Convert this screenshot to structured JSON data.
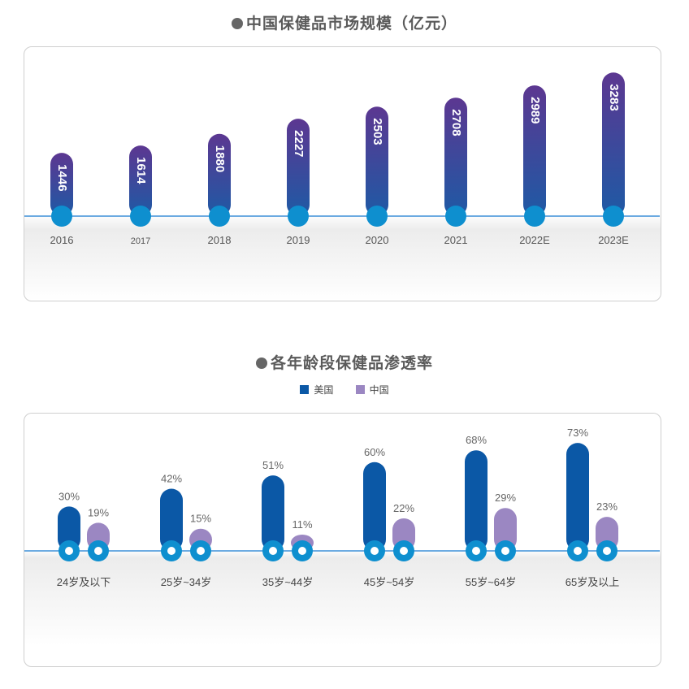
{
  "chart_data": [
    {
      "type": "bar",
      "title": "中国保健品市场规模（亿元）",
      "categories": [
        "2016",
        "2017",
        "2018",
        "2019",
        "2020",
        "2021",
        "2022E",
        "2023E"
      ],
      "values": [
        1446,
        1614,
        1880,
        2227,
        2503,
        2708,
        2989,
        3283
      ],
      "value_labels": [
        "1446",
        "1614",
        "1880",
        "2227",
        "2503",
        "2708",
        "2989",
        "3283"
      ],
      "ylim": [
        0,
        3400
      ],
      "grid": false,
      "colors": {
        "bar_top": "#5c3791",
        "bar_bottom": "#1e5aa5",
        "dot": "#0e8fcf",
        "baseline": "#3b8fd8"
      }
    },
    {
      "type": "bar",
      "title": "各年龄段保健品渗透率",
      "categories": [
        "24岁及以下",
        "25岁~34岁",
        "35岁~44岁",
        "45岁~54岁",
        "55岁~64岁",
        "65岁及以上"
      ],
      "series": [
        {
          "name": "美国",
          "values": [
            30,
            42,
            51,
            60,
            68,
            73
          ],
          "labels": [
            "30%",
            "42%",
            "51%",
            "60%",
            "68%",
            "73%"
          ],
          "color": "#0b58a6"
        },
        {
          "name": "中国",
          "values": [
            19,
            15,
            11,
            22,
            29,
            23
          ],
          "labels": [
            "19%",
            "15%",
            "11%",
            "22%",
            "29%",
            "23%"
          ],
          "color": "#9b87c2"
        }
      ],
      "unit": "%",
      "legend_position": "top-center",
      "grid": false,
      "colors": {
        "dot": "#0e8fcf",
        "baseline": "#3b8fd8"
      }
    }
  ]
}
